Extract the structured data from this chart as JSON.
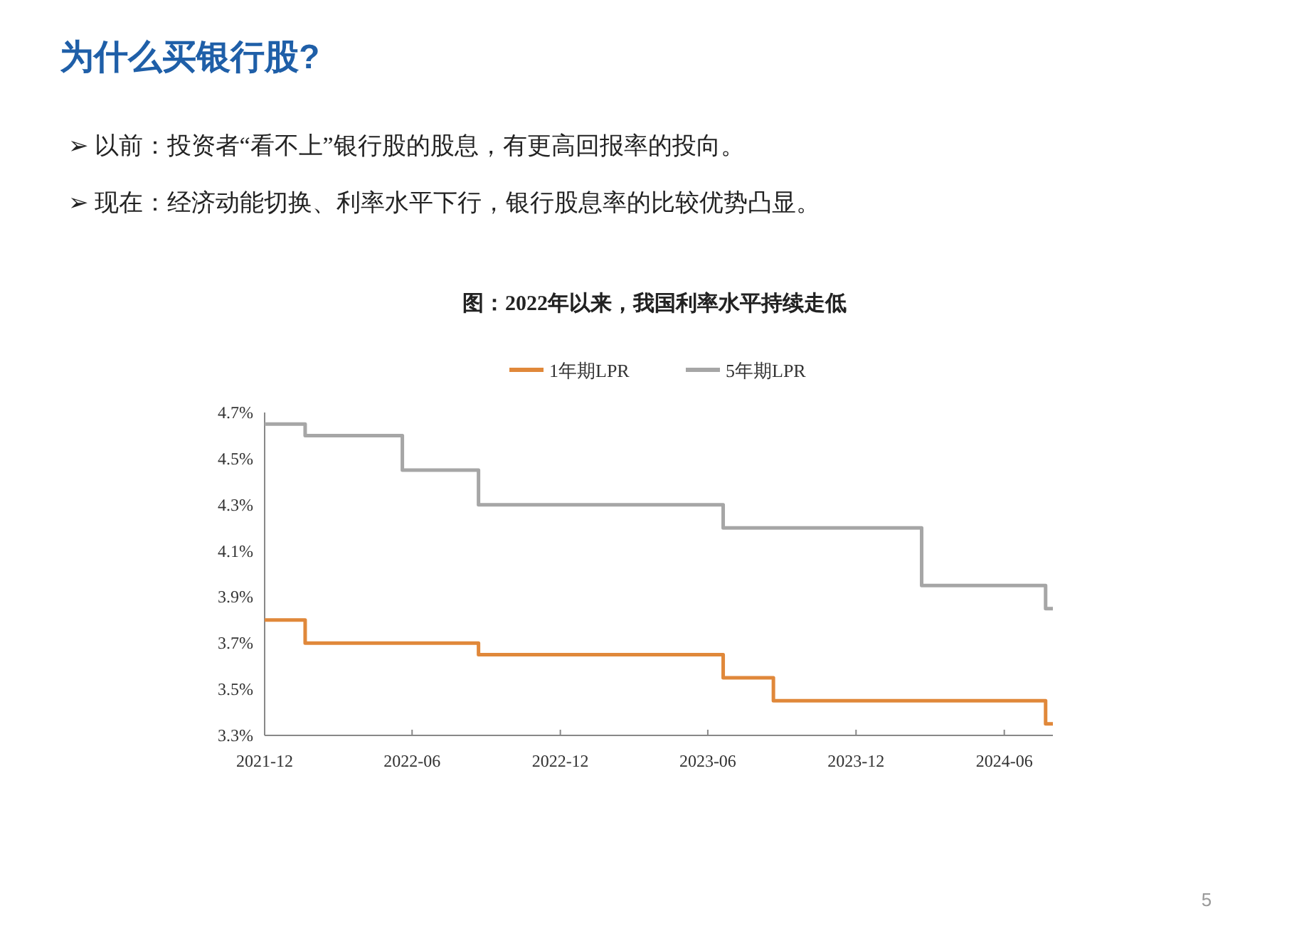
{
  "chart_data": {
    "type": "step",
    "title": "为什么买银行股?",
    "subtitle": "图：2022年以来，我国利率水平持续走低",
    "annotations": [
      "➢  以前：投资者“看不上”银行股的股息，有更高回报率的投向。",
      "➢  现在：经济动能切换、利率水平下行，银行股息率的比较优势凸显。",
      "5"
    ],
    "series": [
      {
        "name": "1年期LPR",
        "color": "#e0883a",
        "x": [
          "2021-12-01",
          "2022-01-20",
          "2022-08-22",
          "2023-06-20",
          "2023-08-21",
          "2024-07-22",
          "2024-07-31"
        ],
        "values": [
          3.8,
          3.7,
          3.65,
          3.55,
          3.45,
          3.35,
          3.35
        ]
      },
      {
        "name": "5年期LPR",
        "color": "#a6a6a6",
        "x": [
          "2021-12-01",
          "2022-01-20",
          "2022-05-20",
          "2022-08-22",
          "2023-06-20",
          "2024-02-20",
          "2024-07-22",
          "2024-07-31"
        ],
        "values": [
          4.65,
          4.6,
          4.45,
          4.3,
          4.2,
          3.95,
          3.85,
          3.85
        ]
      }
    ],
    "xlim": [
      "2021-12-01",
      "2024-07-31"
    ],
    "xticks": [
      {
        "value": "2021-12-01",
        "label": "2021-12"
      },
      {
        "value": "2022-06-01",
        "label": "2022-06"
      },
      {
        "value": "2022-12-01",
        "label": "2022-12"
      },
      {
        "value": "2023-06-01",
        "label": "2023-06"
      },
      {
        "value": "2023-12-01",
        "label": "2023-12"
      },
      {
        "value": "2024-06-01",
        "label": "2024-06"
      }
    ],
    "ylim": [
      3.3,
      4.7
    ],
    "yticks": [
      {
        "value": 3.3,
        "label": "3.3%"
      },
      {
        "value": 3.5,
        "label": "3.5%"
      },
      {
        "value": 3.7,
        "label": "3.7%"
      },
      {
        "value": 3.9,
        "label": "3.9%"
      },
      {
        "value": 4.1,
        "label": "4.1%"
      },
      {
        "value": 4.3,
        "label": "4.3%"
      },
      {
        "value": 4.5,
        "label": "4.5%"
      },
      {
        "value": 4.7,
        "label": "4.7%"
      }
    ],
    "legend": "top",
    "grid": false,
    "marker": "none",
    "line_style": "solid"
  }
}
